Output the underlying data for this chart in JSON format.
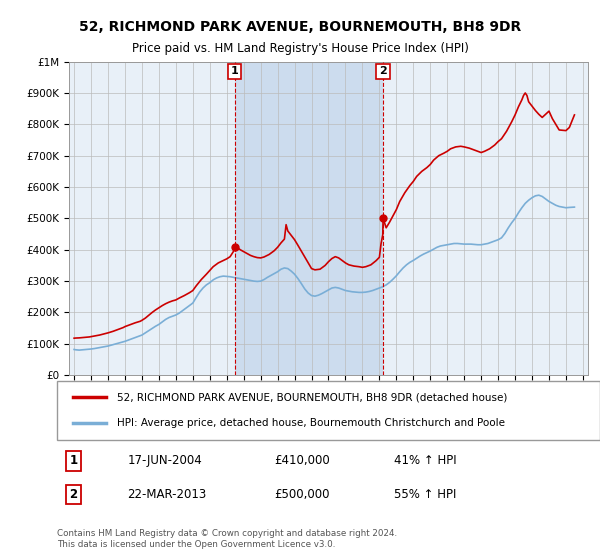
{
  "title1": "52, RICHMOND PARK AVENUE, BOURNEMOUTH, BH8 9DR",
  "title2": "Price paid vs. HM Land Registry's House Price Index (HPI)",
  "background_color": "#ffffff",
  "plot_bg_color": "#e8f0f8",
  "shade_color": "#ccdcee",
  "hpi_color": "#7aaed6",
  "price_color": "#cc0000",
  "ylim": [
    0,
    1000000
  ],
  "yticks": [
    0,
    100000,
    200000,
    300000,
    400000,
    500000,
    600000,
    700000,
    800000,
    900000,
    1000000
  ],
  "ytick_labels": [
    "£0",
    "£100K",
    "£200K",
    "£300K",
    "£400K",
    "£500K",
    "£600K",
    "£700K",
    "£800K",
    "£900K",
    "£1M"
  ],
  "sale1_date": 2004.46,
  "sale1_price": 410000,
  "sale2_date": 2013.22,
  "sale2_price": 500000,
  "legend_line1": "52, RICHMOND PARK AVENUE, BOURNEMOUTH, BH8 9DR (detached house)",
  "legend_line2": "HPI: Average price, detached house, Bournemouth Christchurch and Poole",
  "annotation1_label": "1",
  "annotation1_date": "17-JUN-2004",
  "annotation1_price": "£410,000",
  "annotation1_hpi": "41% ↑ HPI",
  "annotation2_label": "2",
  "annotation2_date": "22-MAR-2013",
  "annotation2_price": "£500,000",
  "annotation2_hpi": "55% ↑ HPI",
  "footnote": "Contains HM Land Registry data © Crown copyright and database right 2024.\nThis data is licensed under the Open Government Licence v3.0.",
  "hpi_data": [
    [
      1995.0,
      82000
    ],
    [
      1995.1,
      81000
    ],
    [
      1995.2,
      80500
    ],
    [
      1995.3,
      80000
    ],
    [
      1995.4,
      80500
    ],
    [
      1995.5,
      81000
    ],
    [
      1995.6,
      81500
    ],
    [
      1995.7,
      82000
    ],
    [
      1995.8,
      82500
    ],
    [
      1995.9,
      83000
    ],
    [
      1996.0,
      83500
    ],
    [
      1996.2,
      85000
    ],
    [
      1996.4,
      87000
    ],
    [
      1996.6,
      89000
    ],
    [
      1996.8,
      91000
    ],
    [
      1997.0,
      93000
    ],
    [
      1997.2,
      96000
    ],
    [
      1997.4,
      99000
    ],
    [
      1997.6,
      102000
    ],
    [
      1997.8,
      105000
    ],
    [
      1998.0,
      108000
    ],
    [
      1998.2,
      112000
    ],
    [
      1998.4,
      116000
    ],
    [
      1998.6,
      120000
    ],
    [
      1998.8,
      124000
    ],
    [
      1999.0,
      128000
    ],
    [
      1999.2,
      135000
    ],
    [
      1999.4,
      142000
    ],
    [
      1999.6,
      149000
    ],
    [
      1999.8,
      156000
    ],
    [
      2000.0,
      162000
    ],
    [
      2000.2,
      170000
    ],
    [
      2000.4,
      178000
    ],
    [
      2000.6,
      184000
    ],
    [
      2000.8,
      188000
    ],
    [
      2001.0,
      192000
    ],
    [
      2001.2,
      198000
    ],
    [
      2001.4,
      206000
    ],
    [
      2001.6,
      214000
    ],
    [
      2001.8,
      222000
    ],
    [
      2002.0,
      230000
    ],
    [
      2002.2,
      248000
    ],
    [
      2002.4,
      265000
    ],
    [
      2002.6,
      278000
    ],
    [
      2002.8,
      288000
    ],
    [
      2003.0,
      295000
    ],
    [
      2003.2,
      304000
    ],
    [
      2003.4,
      310000
    ],
    [
      2003.6,
      314000
    ],
    [
      2003.8,
      316000
    ],
    [
      2004.0,
      315000
    ],
    [
      2004.2,
      314000
    ],
    [
      2004.4,
      312000
    ],
    [
      2004.46,
      311000
    ],
    [
      2004.6,
      310000
    ],
    [
      2004.8,
      308000
    ],
    [
      2005.0,
      306000
    ],
    [
      2005.2,
      304000
    ],
    [
      2005.4,
      302000
    ],
    [
      2005.6,
      300000
    ],
    [
      2005.8,
      299000
    ],
    [
      2006.0,
      300000
    ],
    [
      2006.2,
      305000
    ],
    [
      2006.4,
      312000
    ],
    [
      2006.6,
      318000
    ],
    [
      2006.8,
      324000
    ],
    [
      2007.0,
      330000
    ],
    [
      2007.2,
      338000
    ],
    [
      2007.4,
      342000
    ],
    [
      2007.6,
      340000
    ],
    [
      2007.8,
      332000
    ],
    [
      2008.0,
      322000
    ],
    [
      2008.2,
      308000
    ],
    [
      2008.4,
      292000
    ],
    [
      2008.6,
      275000
    ],
    [
      2008.8,
      262000
    ],
    [
      2009.0,
      254000
    ],
    [
      2009.2,
      252000
    ],
    [
      2009.4,
      255000
    ],
    [
      2009.6,
      260000
    ],
    [
      2009.8,
      266000
    ],
    [
      2010.0,
      272000
    ],
    [
      2010.2,
      278000
    ],
    [
      2010.4,
      280000
    ],
    [
      2010.6,
      278000
    ],
    [
      2010.8,
      274000
    ],
    [
      2011.0,
      270000
    ],
    [
      2011.2,
      268000
    ],
    [
      2011.4,
      266000
    ],
    [
      2011.6,
      265000
    ],
    [
      2011.8,
      264000
    ],
    [
      2012.0,
      264000
    ],
    [
      2012.2,
      265000
    ],
    [
      2012.4,
      267000
    ],
    [
      2012.6,
      270000
    ],
    [
      2012.8,
      274000
    ],
    [
      2013.0,
      278000
    ],
    [
      2013.2,
      282000
    ],
    [
      2013.22,
      283000
    ],
    [
      2013.4,
      288000
    ],
    [
      2013.6,
      296000
    ],
    [
      2013.8,
      306000
    ],
    [
      2014.0,
      317000
    ],
    [
      2014.2,
      330000
    ],
    [
      2014.4,
      342000
    ],
    [
      2014.6,
      352000
    ],
    [
      2014.8,
      360000
    ],
    [
      2015.0,
      366000
    ],
    [
      2015.2,
      373000
    ],
    [
      2015.4,
      380000
    ],
    [
      2015.6,
      386000
    ],
    [
      2015.8,
      391000
    ],
    [
      2016.0,
      396000
    ],
    [
      2016.2,
      402000
    ],
    [
      2016.4,
      408000
    ],
    [
      2016.6,
      412000
    ],
    [
      2016.8,
      414000
    ],
    [
      2017.0,
      416000
    ],
    [
      2017.2,
      418000
    ],
    [
      2017.4,
      420000
    ],
    [
      2017.6,
      420000
    ],
    [
      2017.8,
      419000
    ],
    [
      2018.0,
      418000
    ],
    [
      2018.2,
      418000
    ],
    [
      2018.4,
      418000
    ],
    [
      2018.6,
      417000
    ],
    [
      2018.8,
      416000
    ],
    [
      2019.0,
      416000
    ],
    [
      2019.2,
      418000
    ],
    [
      2019.4,
      420000
    ],
    [
      2019.6,
      424000
    ],
    [
      2019.8,
      428000
    ],
    [
      2020.0,
      432000
    ],
    [
      2020.2,
      438000
    ],
    [
      2020.4,
      452000
    ],
    [
      2020.6,
      470000
    ],
    [
      2020.8,
      486000
    ],
    [
      2021.0,
      500000
    ],
    [
      2021.2,
      518000
    ],
    [
      2021.4,
      534000
    ],
    [
      2021.6,
      548000
    ],
    [
      2021.8,
      558000
    ],
    [
      2022.0,
      566000
    ],
    [
      2022.2,
      572000
    ],
    [
      2022.4,
      574000
    ],
    [
      2022.6,
      570000
    ],
    [
      2022.8,
      562000
    ],
    [
      2023.0,
      554000
    ],
    [
      2023.2,
      548000
    ],
    [
      2023.4,
      542000
    ],
    [
      2023.6,
      538000
    ],
    [
      2023.8,
      536000
    ],
    [
      2024.0,
      534000
    ],
    [
      2024.2,
      535000
    ],
    [
      2024.5,
      536000
    ]
  ],
  "price_data": [
    [
      1995.0,
      118000
    ],
    [
      1995.1,
      118500
    ],
    [
      1995.3,
      119000
    ],
    [
      1995.5,
      120000
    ],
    [
      1995.7,
      121000
    ],
    [
      1995.9,
      122000
    ],
    [
      1996.0,
      123000
    ],
    [
      1996.2,
      125000
    ],
    [
      1996.5,
      128000
    ],
    [
      1996.8,
      132000
    ],
    [
      1997.0,
      135000
    ],
    [
      1997.3,
      140000
    ],
    [
      1997.6,
      146000
    ],
    [
      1997.9,
      152000
    ],
    [
      1998.0,
      155000
    ],
    [
      1998.3,
      161000
    ],
    [
      1998.6,
      167000
    ],
    [
      1998.9,
      172000
    ],
    [
      1999.0,
      175000
    ],
    [
      1999.2,
      182000
    ],
    [
      1999.4,
      191000
    ],
    [
      1999.6,
      200000
    ],
    [
      1999.8,
      208000
    ],
    [
      2000.0,
      215000
    ],
    [
      2000.2,
      222000
    ],
    [
      2000.4,
      228000
    ],
    [
      2000.6,
      233000
    ],
    [
      2000.8,
      237000
    ],
    [
      2001.0,
      240000
    ],
    [
      2001.2,
      246000
    ],
    [
      2001.5,
      254000
    ],
    [
      2001.8,
      263000
    ],
    [
      2002.0,
      270000
    ],
    [
      2002.2,
      285000
    ],
    [
      2002.5,
      305000
    ],
    [
      2002.8,
      322000
    ],
    [
      2003.0,
      334000
    ],
    [
      2003.2,
      346000
    ],
    [
      2003.5,
      358000
    ],
    [
      2003.8,
      366000
    ],
    [
      2004.0,
      371000
    ],
    [
      2004.2,
      378000
    ],
    [
      2004.4,
      395000
    ],
    [
      2004.46,
      410000
    ],
    [
      2004.6,
      408000
    ],
    [
      2004.8,
      400000
    ],
    [
      2005.0,
      394000
    ],
    [
      2005.2,
      388000
    ],
    [
      2005.4,
      382000
    ],
    [
      2005.6,
      378000
    ],
    [
      2005.8,
      375000
    ],
    [
      2006.0,
      374000
    ],
    [
      2006.2,
      377000
    ],
    [
      2006.5,
      385000
    ],
    [
      2006.8,
      397000
    ],
    [
      2007.0,
      408000
    ],
    [
      2007.2,
      422000
    ],
    [
      2007.4,
      434000
    ],
    [
      2007.5,
      480000
    ],
    [
      2007.6,
      460000
    ],
    [
      2007.8,
      446000
    ],
    [
      2008.0,
      432000
    ],
    [
      2008.2,
      414000
    ],
    [
      2008.5,
      386000
    ],
    [
      2008.8,
      358000
    ],
    [
      2009.0,
      340000
    ],
    [
      2009.2,
      336000
    ],
    [
      2009.5,
      338000
    ],
    [
      2009.8,
      350000
    ],
    [
      2010.0,
      362000
    ],
    [
      2010.2,
      372000
    ],
    [
      2010.4,
      378000
    ],
    [
      2010.6,
      374000
    ],
    [
      2010.8,
      366000
    ],
    [
      2011.0,
      358000
    ],
    [
      2011.2,
      352000
    ],
    [
      2011.5,
      348000
    ],
    [
      2011.8,
      346000
    ],
    [
      2012.0,
      344000
    ],
    [
      2012.2,
      346000
    ],
    [
      2012.5,
      352000
    ],
    [
      2012.8,
      365000
    ],
    [
      2013.0,
      376000
    ],
    [
      2013.1,
      420000
    ],
    [
      2013.2,
      448000
    ],
    [
      2013.22,
      500000
    ],
    [
      2013.4,
      470000
    ],
    [
      2013.6,
      488000
    ],
    [
      2013.8,
      508000
    ],
    [
      2014.0,
      528000
    ],
    [
      2014.2,
      554000
    ],
    [
      2014.5,
      582000
    ],
    [
      2014.8,
      605000
    ],
    [
      2015.0,
      618000
    ],
    [
      2015.2,
      634000
    ],
    [
      2015.5,
      650000
    ],
    [
      2015.8,
      662000
    ],
    [
      2016.0,
      672000
    ],
    [
      2016.2,
      686000
    ],
    [
      2016.5,
      700000
    ],
    [
      2016.8,
      708000
    ],
    [
      2017.0,
      714000
    ],
    [
      2017.2,
      722000
    ],
    [
      2017.5,
      728000
    ],
    [
      2017.8,
      730000
    ],
    [
      2018.0,
      728000
    ],
    [
      2018.3,
      724000
    ],
    [
      2018.6,
      718000
    ],
    [
      2018.9,
      712000
    ],
    [
      2019.0,
      710000
    ],
    [
      2019.2,
      714000
    ],
    [
      2019.5,
      722000
    ],
    [
      2019.8,
      734000
    ],
    [
      2020.0,
      745000
    ],
    [
      2020.2,
      754000
    ],
    [
      2020.5,
      778000
    ],
    [
      2020.8,
      808000
    ],
    [
      2021.0,
      830000
    ],
    [
      2021.2,
      856000
    ],
    [
      2021.4,
      878000
    ],
    [
      2021.5,
      892000
    ],
    [
      2021.6,
      900000
    ],
    [
      2021.7,
      892000
    ],
    [
      2021.8,
      872000
    ],
    [
      2022.0,
      858000
    ],
    [
      2022.2,
      844000
    ],
    [
      2022.4,
      832000
    ],
    [
      2022.6,
      822000
    ],
    [
      2022.8,
      832000
    ],
    [
      2023.0,
      842000
    ],
    [
      2023.1,
      830000
    ],
    [
      2023.2,
      818000
    ],
    [
      2023.4,
      800000
    ],
    [
      2023.6,
      782000
    ],
    [
      2024.0,
      780000
    ],
    [
      2024.2,
      790000
    ],
    [
      2024.5,
      830000
    ]
  ]
}
